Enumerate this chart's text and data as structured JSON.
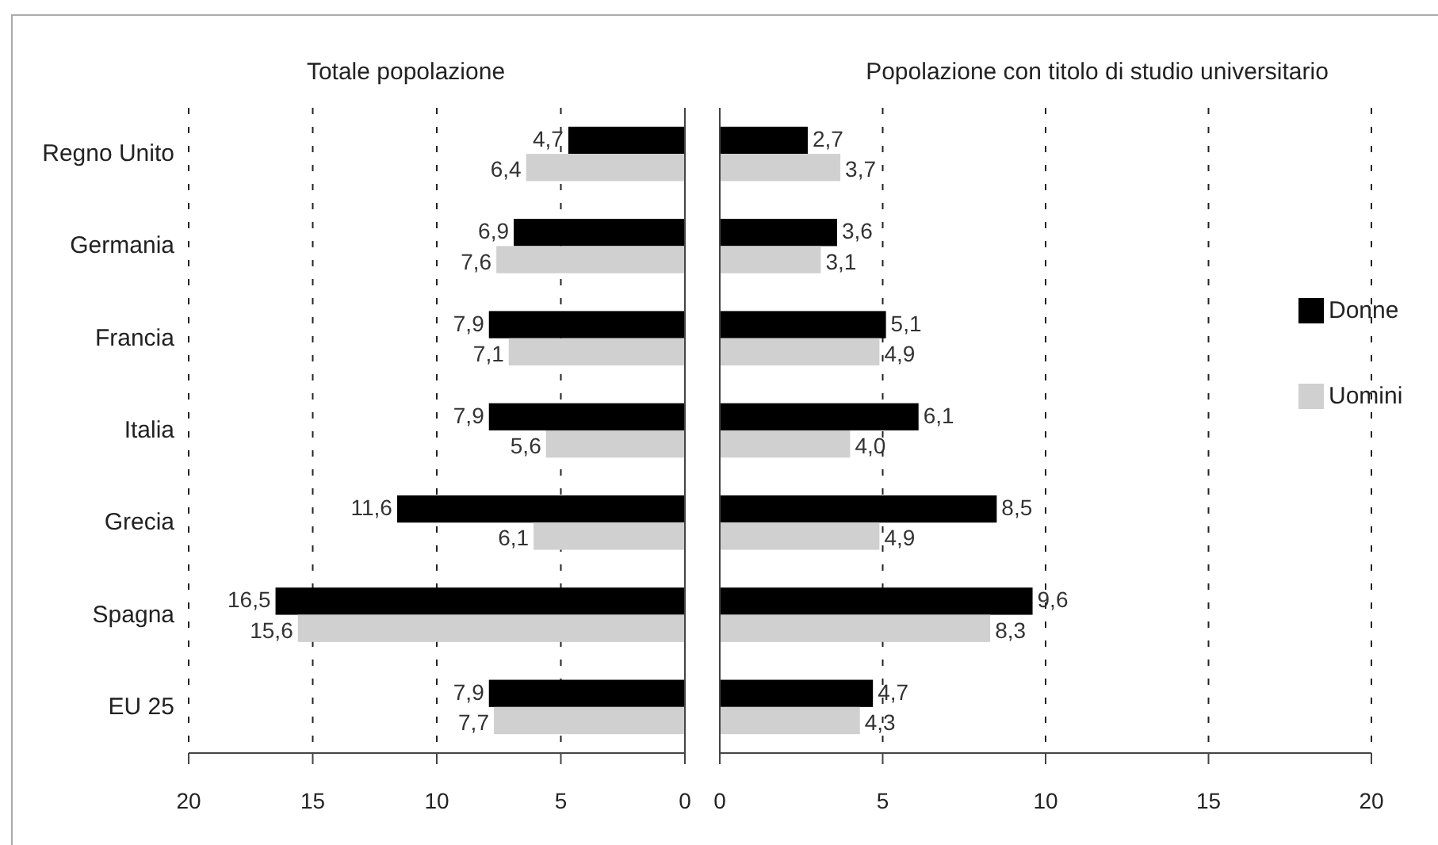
{
  "chart_data": [
    {
      "type": "bar",
      "orientation": "horizontal",
      "title": "Totale popolazione",
      "categories": [
        "Regno Unito",
        "Germania",
        "Francia",
        "Italia",
        "Grecia",
        "Spagna",
        "EU 25"
      ],
      "series": [
        {
          "color": "#000000",
          "values": [
            4.7,
            6.9,
            7.9,
            7.9,
            11.6,
            16.5,
            7.9
          ],
          "value_labels": [
            "4,7",
            "6,9",
            "7,9",
            "7,9",
            "11,6",
            "16,5",
            "7,9"
          ]
        },
        {
          "color": "#d0d0d0",
          "values": [
            6.4,
            7.6,
            7.1,
            5.6,
            6.1,
            15.6,
            7.7
          ],
          "value_labels": [
            "6,4",
            "7,6",
            "7,1",
            "5,6",
            "6,1",
            "15,6",
            "7,7"
          ]
        }
      ],
      "xlim": [
        20,
        0
      ],
      "xticks": [
        20,
        15,
        10,
        5,
        0
      ],
      "grid": "x"
    },
    {
      "type": "bar",
      "orientation": "horizontal",
      "title": "Popolazione con titolo di studio universitario",
      "categories": [
        null,
        null,
        null,
        null,
        null,
        null,
        null
      ],
      "series": [
        {
          "name": "Donne",
          "color": "#000000",
          "values": [
            2.7,
            3.6,
            5.1,
            6.1,
            8.5,
            9.6,
            4.7
          ],
          "value_labels": [
            "2,7",
            "3,6",
            "5,1",
            "6,1",
            "8,5",
            "9,6",
            "4,7"
          ]
        },
        {
          "name": "Uomini",
          "color": "#d0d0d0",
          "values": [
            3.7,
            3.1,
            4.9,
            4.0,
            4.9,
            8.3,
            4.3
          ],
          "value_labels": [
            "3,7",
            "3,1",
            "4,9",
            "4,0",
            "4,9",
            "8,3",
            "4,3"
          ]
        }
      ],
      "xlim": [
        0,
        20
      ],
      "xticks": [
        0,
        5,
        10,
        15,
        20
      ],
      "grid": "x",
      "legend": "right",
      "tick_labels": "x"
    }
  ]
}
